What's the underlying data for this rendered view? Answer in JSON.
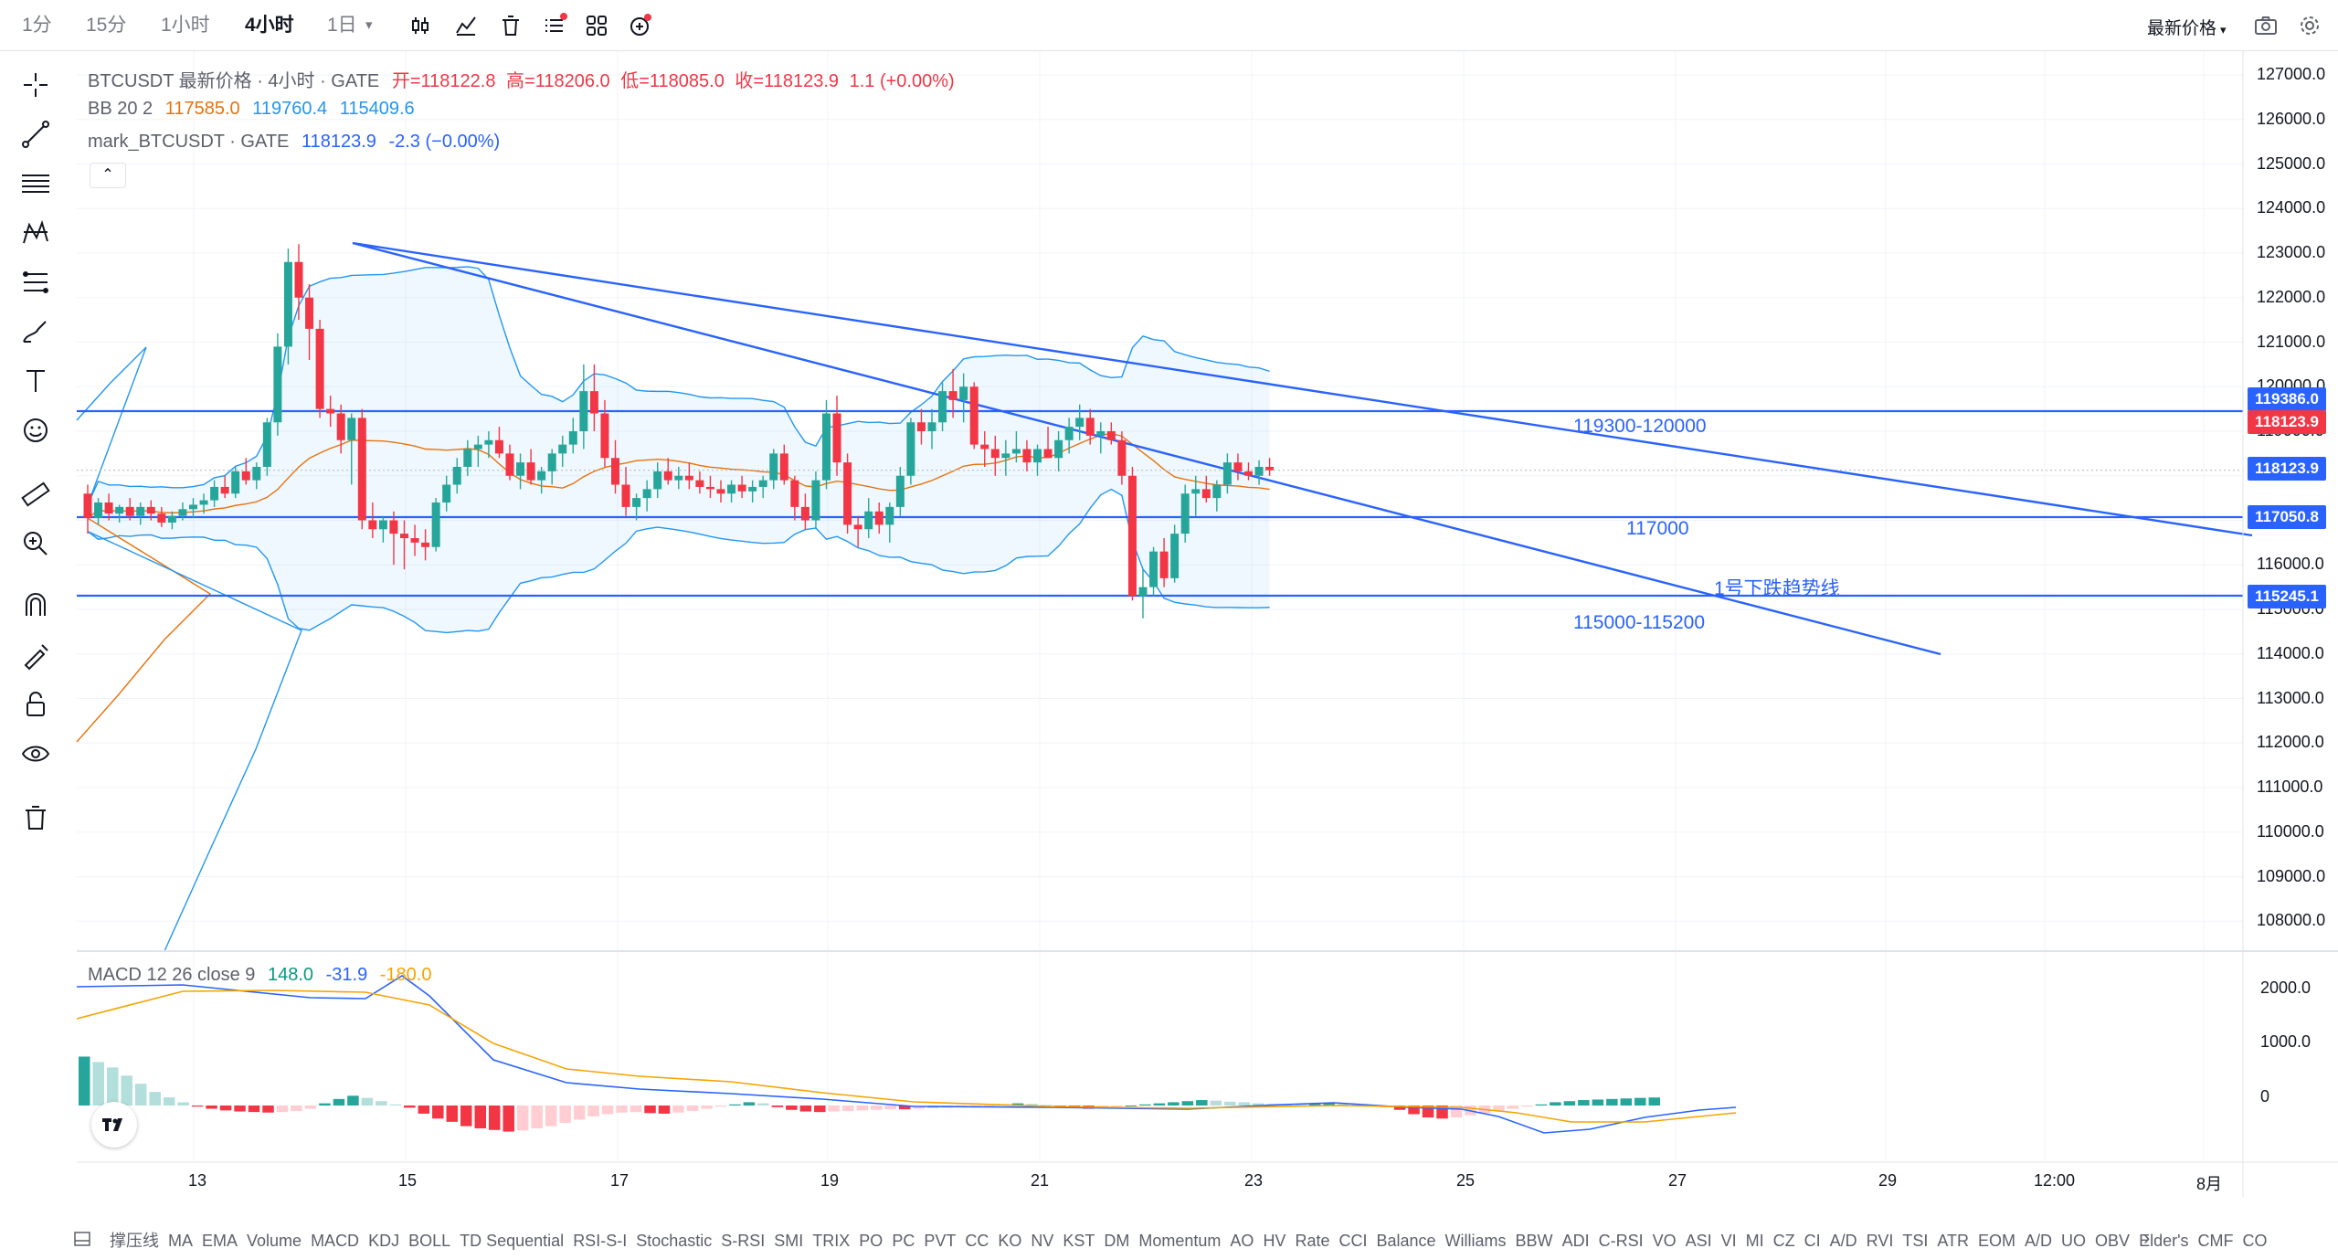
{
  "toolbar": {
    "timeframes": [
      "1分",
      "15分",
      "1小时",
      "4小时",
      "1日"
    ],
    "active_timeframe": "4小时",
    "price_type": "最新价格"
  },
  "legend": {
    "symbol": "BTCUSDT 最新价格 · 4小时 · GATE",
    "open_label": "开=118122.8",
    "high_label": "高=118206.0",
    "low_label": "低=118085.0",
    "close_label": "收=118123.9",
    "change": "1.1 (+0.00%)",
    "bb_label": "BB 20 2",
    "bb_basis": "117585.0",
    "bb_upper": "119760.4",
    "bb_lower": "115409.6",
    "mark_label": "mark_BTCUSDT · GATE",
    "mark_value": "118123.9",
    "mark_change": "-2.3 (−0.00%)",
    "collapse": "⌃"
  },
  "macd_legend": {
    "label": "MACD 12 26 close 9",
    "hist": "148.0",
    "macd": "-31.9",
    "signal": "-180.0"
  },
  "annotations": {
    "resistance": "119300-120000",
    "mid": "117000",
    "support": "115000-115200",
    "trendline": "1号下跌趋势线"
  },
  "price_axis": {
    "ticks": [
      "127000.0",
      "126000.0",
      "125000.0",
      "124000.0",
      "123000.0",
      "122000.0",
      "121000.0",
      "120000.0",
      "119000.0",
      "118000.0",
      "117000.0",
      "116000.0",
      "115000.0",
      "114000.0",
      "113000.0",
      "112000.0",
      "111000.0",
      "110000.0",
      "109000.0",
      "108000.0"
    ],
    "tags": {
      "resistance": "119386.0",
      "last": "118123.9",
      "mark": "118123.9",
      "mid": "117050.8",
      "support": "115245.1"
    }
  },
  "macd_axis": {
    "ticks": [
      "2000.0",
      "1000.0",
      "0"
    ]
  },
  "time_axis": {
    "ticks": [
      "13",
      "15",
      "17",
      "19",
      "21",
      "23",
      "25",
      "27",
      "29",
      "12:00",
      "8月"
    ]
  },
  "indicators": [
    "撑压线",
    "MA",
    "EMA",
    "Volume",
    "MACD",
    "KDJ",
    "BOLL",
    "TD Sequential",
    "RSI-S-I",
    "Stochastic",
    "S-RSI",
    "SMI",
    "TRIX",
    "PO",
    "PC",
    "PVT",
    "CC",
    "KO",
    "NV",
    "KST",
    "DM",
    "Momentum",
    "AO",
    "HV",
    "Rate",
    "CCI",
    "Balance",
    "Williams",
    "BBW",
    "ADI",
    "C-RSI",
    "VO",
    "ASI",
    "VI",
    "MI",
    "CZ",
    "CI",
    "A/D",
    "RVI",
    "TSI",
    "ATR",
    "EOM",
    "A/D",
    "UO",
    "OBV",
    "Elder's",
    "CMF",
    "CO"
  ],
  "colors": {
    "up": "#26a69a",
    "down": "#f23645",
    "line_blue": "#2962ff",
    "bb_band": "#2196f3",
    "basis": "#e8720c",
    "signal": "#f5a400"
  },
  "chart_data": {
    "type": "candlestick",
    "price_range": [
      107500,
      127500
    ],
    "horizontal_levels": [
      119386.0,
      117050.8,
      115245.1
    ],
    "macd_range": [
      -800,
      2400
    ]
  }
}
